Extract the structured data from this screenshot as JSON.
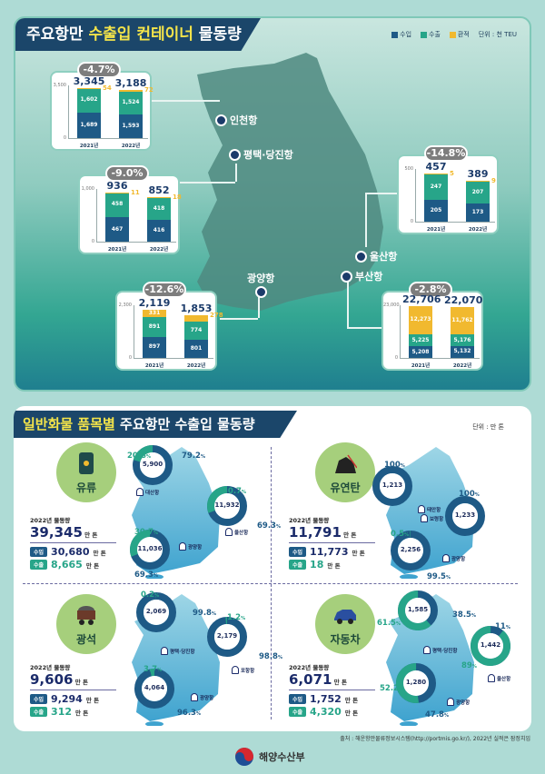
{
  "top": {
    "title_a": "주요항만 ",
    "title_b": "수출입 컨테이너",
    "title_c": " 물동량",
    "legend": [
      {
        "label": "수입",
        "color": "#1e5a86"
      },
      {
        "label": "수출",
        "color": "#27a589"
      },
      {
        "label": "환적",
        "color": "#f1b92f"
      }
    ],
    "unit": "단위 : 천 TEU"
  },
  "chart_data": [
    {
      "type": "bar",
      "stacked": true,
      "port": "인천항",
      "change": "-4.7%",
      "ylim": [
        0,
        3500
      ],
      "ytick_labels": [
        "3,500",
        "0"
      ],
      "categories": [
        "2021년",
        "2022년"
      ],
      "totals": [
        "3,345",
        "3,188"
      ],
      "series": [
        {
          "name": "수입",
          "values": [
            1689,
            1593
          ]
        },
        {
          "name": "수출",
          "values": [
            1602,
            1524
          ]
        },
        {
          "name": "환적",
          "values": [
            54,
            72
          ]
        }
      ]
    },
    {
      "type": "bar",
      "stacked": true,
      "port": "평택·당진항",
      "change": "-9.0%",
      "ylim": [
        0,
        1000
      ],
      "ytick_labels": [
        "1,000",
        "0"
      ],
      "categories": [
        "2021년",
        "2022년"
      ],
      "totals": [
        "936",
        "852"
      ],
      "series": [
        {
          "name": "수입",
          "values": [
            467,
            416
          ]
        },
        {
          "name": "수출",
          "values": [
            458,
            418
          ]
        },
        {
          "name": "환적",
          "values": [
            11,
            18
          ]
        }
      ]
    },
    {
      "type": "bar",
      "stacked": true,
      "port": "광양항",
      "change": "-12.6%",
      "ylim": [
        0,
        2300
      ],
      "ytick_labels": [
        "2,300",
        "0"
      ],
      "categories": [
        "2021년",
        "2022년"
      ],
      "totals": [
        "2,119",
        "1,853"
      ],
      "series": [
        {
          "name": "수입",
          "values": [
            897,
            801
          ]
        },
        {
          "name": "수출",
          "values": [
            891,
            774
          ]
        },
        {
          "name": "환적",
          "values": [
            331,
            278
          ]
        }
      ]
    },
    {
      "type": "bar",
      "stacked": true,
      "port": "울산항",
      "change": "-14.8%",
      "ylim": [
        0,
        500
      ],
      "ytick_labels": [
        "500",
        "0"
      ],
      "categories": [
        "2021년",
        "2022년"
      ],
      "totals": [
        "457",
        "389"
      ],
      "series": [
        {
          "name": "수입",
          "values": [
            205,
            173
          ]
        },
        {
          "name": "수출",
          "values": [
            247,
            207
          ]
        },
        {
          "name": "환적",
          "values": [
            5,
            9
          ]
        }
      ]
    },
    {
      "type": "bar",
      "stacked": true,
      "port": "부산항",
      "change": "-2.8%",
      "ylim": [
        0,
        23000
      ],
      "ytick_labels": [
        "23,000",
        "0"
      ],
      "categories": [
        "2021년",
        "2022년"
      ],
      "totals": [
        "22,706",
        "22,070"
      ],
      "series": [
        {
          "name": "수입",
          "values": [
            5208,
            5132
          ]
        },
        {
          "name": "수출",
          "values": [
            5225,
            5176
          ]
        },
        {
          "name": "환적",
          "values": [
            12273,
            11762
          ]
        }
      ]
    }
  ],
  "bottom": {
    "title_a": "일반화물 품목별",
    "title_b": " 주요항만 수출입 물동량",
    "unit": "단위 : 만 톤",
    "year_label": "2022년 물동량",
    "unit_word": "만 톤",
    "import_tag": "수입",
    "export_tag": "수출",
    "colors": {
      "import": "#1e5a86",
      "export": "#27a589"
    },
    "items": [
      {
        "name": "유류",
        "icon": "oil-barrel-icon",
        "total": "39,345",
        "import": "30,680",
        "export": "8,665",
        "ports": [
          {
            "port": "대산항",
            "value": "5,900",
            "import_pct": 79.2,
            "export_pct": 20.8
          },
          {
            "port": "울산항",
            "value": "11,932",
            "import_pct": 69.3,
            "export_pct": 30.7
          },
          {
            "port": "광양항",
            "value": "11,036",
            "import_pct": 69.3,
            "export_pct": 30.7
          }
        ]
      },
      {
        "name": "유연탄",
        "icon": "coal-pile-icon",
        "total": "11,791",
        "import": "11,773",
        "export": "18",
        "ports": [
          {
            "port": "태안항",
            "value": "1,213",
            "import_pct": 100,
            "export_pct": null
          },
          {
            "port": "보령항",
            "value": "1,233",
            "import_pct": 100,
            "export_pct": null
          },
          {
            "port": "광양항",
            "value": "2,256",
            "import_pct": 99.5,
            "export_pct": 0.5
          }
        ]
      },
      {
        "name": "광석",
        "icon": "mine-cart-icon",
        "total": "9,606",
        "import": "9,294",
        "export": "312",
        "ports": [
          {
            "port": "평택·당진항",
            "value": "2,069",
            "import_pct": 99.8,
            "export_pct": 0.2
          },
          {
            "port": "포항항",
            "value": "2,179",
            "import_pct": 98.8,
            "export_pct": 1.2
          },
          {
            "port": "광양항",
            "value": "4,064",
            "import_pct": 96.3,
            "export_pct": 3.7
          }
        ]
      },
      {
        "name": "자동차",
        "icon": "car-icon",
        "total": "6,071",
        "import": "1,752",
        "export": "4,320",
        "ports": [
          {
            "port": "평택·당진항",
            "value": "1,585",
            "import_pct": 38.5,
            "export_pct": 61.5
          },
          {
            "port": "울산항",
            "value": "1,442",
            "import_pct": 11,
            "export_pct": 89
          },
          {
            "port": "광양항",
            "value": "1,280",
            "import_pct": 47.8,
            "export_pct": 52.2
          }
        ]
      }
    ]
  },
  "footer": {
    "source": "출처 : 해운항만물류정보시스템(http://portmis.go.kr/), 2022년 실적은 잠정치임",
    "ministry": "해양수산부"
  }
}
